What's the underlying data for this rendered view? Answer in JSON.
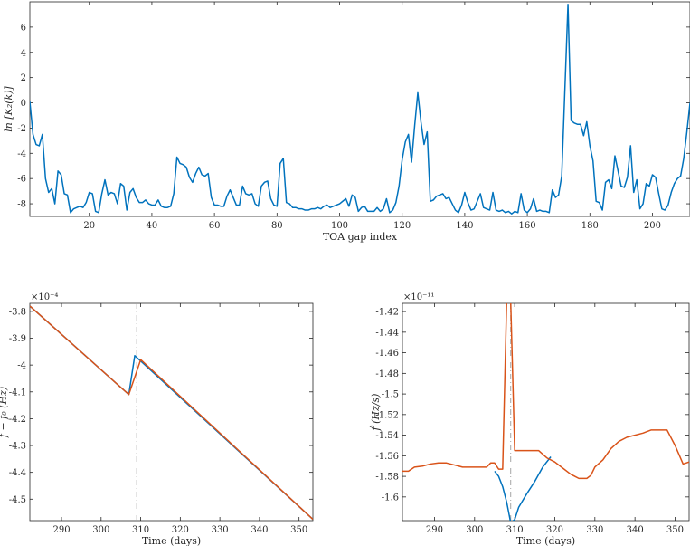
{
  "colors": {
    "blue": "#0072BD",
    "orange": "#D95319",
    "refline": "#A6A6A6",
    "axis": "#262626"
  },
  "chart_data": [
    {
      "id": "top",
      "type": "line",
      "xlabel": "TOA gap index",
      "ylabel": "ln [K₂(k)]",
      "xlim": [
        1,
        212
      ],
      "ylim": [
        -9,
        8
      ],
      "xticks": [
        20,
        40,
        60,
        80,
        100,
        120,
        140,
        160,
        180,
        200
      ],
      "yticks": [
        -8,
        -6,
        -4,
        -2,
        0,
        2,
        4,
        6
      ],
      "xtick_labels": [
        "20",
        "40",
        "60",
        "80",
        "100",
        "120",
        "140",
        "160",
        "180",
        "200"
      ],
      "ytick_labels": [
        "-8",
        "-6",
        "-4",
        "-2",
        "0",
        "2",
        "4",
        "6"
      ],
      "series": [
        {
          "color": "blue",
          "x": [
            1,
            2,
            3,
            4,
            5,
            6,
            7,
            8,
            9,
            10,
            11,
            12,
            13,
            14,
            15,
            16,
            17,
            18,
            19,
            20,
            21,
            22,
            23,
            24,
            25,
            26,
            27,
            28,
            29,
            30,
            31,
            32,
            33,
            34,
            35,
            36,
            37,
            38,
            39,
            40,
            41,
            42,
            43,
            44,
            45,
            46,
            47,
            48,
            49,
            50,
            51,
            52,
            53,
            54,
            55,
            56,
            57,
            58,
            59,
            60,
            61,
            62,
            63,
            64,
            65,
            66,
            67,
            68,
            69,
            70,
            71,
            72,
            73,
            74,
            75,
            76,
            77,
            78,
            79,
            80,
            81,
            82,
            83,
            84,
            85,
            86,
            87,
            88,
            89,
            90,
            91,
            92,
            93,
            94,
            95,
            96,
            97,
            98,
            99,
            100,
            101,
            102,
            103,
            104,
            105,
            106,
            107,
            108,
            109,
            110,
            111,
            112,
            113,
            114,
            115,
            116,
            117,
            118,
            119,
            120,
            121,
            122,
            123,
            124,
            125,
            126,
            127,
            128,
            129,
            130,
            131,
            132,
            133,
            134,
            135,
            136,
            137,
            138,
            139,
            140,
            141,
            142,
            143,
            144,
            145,
            146,
            147,
            148,
            149,
            150,
            151,
            152,
            153,
            154,
            155,
            156,
            157,
            158,
            159,
            160,
            161,
            162,
            163,
            164,
            165,
            166,
            167,
            168,
            169,
            170,
            171,
            172,
            173,
            174,
            175,
            176,
            177,
            178,
            179,
            180,
            181,
            182,
            183,
            184,
            185,
            186,
            187,
            188,
            189,
            190,
            191,
            192,
            193,
            194,
            195,
            196,
            197,
            198,
            199,
            200,
            201,
            202,
            203,
            204,
            205,
            206,
            207,
            208,
            209,
            210,
            211,
            212
          ],
          "y": [
            0.1,
            -2.5,
            -3.3,
            -3.4,
            -2.5,
            -6,
            -7.1,
            -6.8,
            -8,
            -5.4,
            -5.7,
            -7.2,
            -7.3,
            -8.7,
            -8.4,
            -8.3,
            -8.2,
            -8.3,
            -7.9,
            -7.1,
            -7.2,
            -8.6,
            -8.7,
            -7.2,
            -6.1,
            -7.3,
            -7.1,
            -7.2,
            -8,
            -6.4,
            -6.6,
            -8.5,
            -7.1,
            -6.8,
            -7.5,
            -7.9,
            -7.9,
            -7.7,
            -8,
            -8.1,
            -8.1,
            -7.7,
            -8.2,
            -8.3,
            -8.3,
            -8.2,
            -7.2,
            -4.3,
            -4.8,
            -4.9,
            -5.1,
            -5.9,
            -6.3,
            -5.6,
            -5.1,
            -5.7,
            -5.8,
            -5.6,
            -7.5,
            -8.1,
            -8.1,
            -8.2,
            -8.2,
            -7.4,
            -6.9,
            -7.5,
            -8.1,
            -8.1,
            -6.6,
            -7.2,
            -7.3,
            -7.2,
            -8,
            -8.2,
            -6.6,
            -6.3,
            -6.2,
            -7.6,
            -8.1,
            -8.2,
            -4.8,
            -4.4,
            -7.9,
            -8,
            -8.3,
            -8.3,
            -8.4,
            -8.4,
            -8.5,
            -8.5,
            -8.4,
            -8.4,
            -8.3,
            -8.4,
            -8.2,
            -8.1,
            -8.3,
            -8.2,
            -8.1,
            -8,
            -7.8,
            -7.6,
            -8.2,
            -7.3,
            -7.5,
            -8.6,
            -8.3,
            -8.2,
            -8.6,
            -8.6,
            -8.6,
            -8.3,
            -8.6,
            -8.4,
            -7.6,
            -8.7,
            -8.5,
            -7.9,
            -6.6,
            -4.5,
            -3.1,
            -2.5,
            -4.7,
            -1.8,
            0.8,
            -1.5,
            -3.3,
            -2.3,
            -7.8,
            -7.7,
            -7.4,
            -7.3,
            -7.2,
            -7.6,
            -7.5,
            -8,
            -8.5,
            -8.7,
            -8.1,
            -7.1,
            -7.9,
            -8.5,
            -8.4,
            -7.8,
            -7.2,
            -8.3,
            -8.4,
            -8.5,
            -7.1,
            -8.5,
            -8.6,
            -8.5,
            -8.7,
            -8.6,
            -8.8,
            -8.6,
            -8.7,
            -7.2,
            -8.5,
            -8.7,
            -8.4,
            -7.6,
            -8.6,
            -8.5,
            -8.6,
            -8.6,
            -8.7,
            -6.9,
            -7.5,
            -7.3,
            -5.8,
            1,
            7.8,
            -1.4,
            -1.6,
            -1.7,
            -1.7,
            -2.6,
            -1.5,
            -3.4,
            -4.6,
            -7.8,
            -7.9,
            -8.5,
            -6.3,
            -6.1,
            -6.8,
            -4.2,
            -5.4,
            -6.6,
            -6.7,
            -5.9,
            -3.4,
            -7.1,
            -6.1,
            -8.4,
            -8,
            -6.4,
            -6.6,
            -5.7,
            -5.9,
            -7.2,
            -8.4,
            -8.5,
            -8.1,
            -7.1,
            -6.4,
            -6,
            -5.8,
            -4.4,
            -2.3,
            0
          ]
        }
      ]
    },
    {
      "id": "bottom-left",
      "type": "line",
      "xlabel": "Time (days)",
      "ylabel": "f − f₀ (Hz)",
      "exponent_label": "×10⁻⁴",
      "xlim": [
        282,
        353.5
      ],
      "ylim": [
        -4.58,
        -3.77
      ],
      "xticks": [
        290,
        300,
        310,
        320,
        330,
        340,
        350
      ],
      "yticks": [
        -4.5,
        -4.4,
        -4.3,
        -4.2,
        -4.1,
        -4.0,
        -3.9,
        -3.8
      ],
      "xtick_labels": [
        "290",
        "300",
        "310",
        "320",
        "330",
        "340",
        "350"
      ],
      "ytick_labels": [
        "-4.5",
        "-4.4",
        "-4.3",
        "-4.2",
        "-4.1",
        "-4",
        "-3.9",
        "-3.8"
      ],
      "refline_x": 309,
      "series": [
        {
          "color": "blue",
          "x": [
            282,
            307,
            308.5,
            310,
            353.5
          ],
          "y": [
            -3.78,
            -4.11,
            -3.965,
            -3.985,
            -4.575
          ]
        },
        {
          "color": "orange",
          "x": [
            282,
            307,
            310,
            353.5
          ],
          "y": [
            -3.78,
            -4.11,
            -3.98,
            -4.575
          ]
        }
      ]
    },
    {
      "id": "bottom-right",
      "type": "line",
      "xlabel": "Time (days)",
      "ylabel": "ḟ (Hz/s)",
      "exponent_label": "×10⁻¹¹",
      "xlim": [
        282,
        353.5
      ],
      "ylim": [
        -1.623,
        -1.412
      ],
      "xticks": [
        290,
        300,
        310,
        320,
        330,
        340,
        350
      ],
      "yticks": [
        -1.6,
        -1.58,
        -1.56,
        -1.54,
        -1.52,
        -1.5,
        -1.48,
        -1.46,
        -1.44,
        -1.42
      ],
      "xtick_labels": [
        "290",
        "300",
        "310",
        "320",
        "330",
        "340",
        "350"
      ],
      "ytick_labels": [
        "-1.6",
        "-1.58",
        "-1.56",
        "-1.54",
        "-1.52",
        "-1.5",
        "-1.48",
        "-1.46",
        "-1.44",
        "-1.42"
      ],
      "refline_x": 309,
      "series": [
        {
          "color": "blue",
          "x": [
            305,
            306,
            307,
            308,
            309,
            310,
            311,
            313,
            315,
            317,
            319
          ],
          "y": [
            -1.575,
            -1.58,
            -1.59,
            -1.605,
            -1.625,
            -1.622,
            -1.61,
            -1.597,
            -1.585,
            -1.571,
            -1.561
          ]
        },
        {
          "color": "orange",
          "x": [
            282,
            283.5,
            285,
            287,
            289,
            291,
            293,
            295,
            297,
            299,
            301,
            303,
            304,
            305,
            306,
            307,
            308,
            309,
            310,
            312,
            314,
            316,
            318,
            320,
            322,
            324,
            326,
            328,
            329,
            330,
            332,
            334,
            336,
            338,
            340,
            342,
            344,
            346,
            348,
            350,
            352,
            353.5
          ],
          "y": [
            -1.575,
            -1.575,
            -1.571,
            -1.57,
            -1.568,
            -1.567,
            -1.567,
            -1.569,
            -1.571,
            -1.571,
            -1.571,
            -1.571,
            -1.567,
            -1.567,
            -1.573,
            -1.573,
            -1.41,
            -1.41,
            -1.555,
            -1.555,
            -1.555,
            -1.555,
            -1.562,
            -1.566,
            -1.572,
            -1.578,
            -1.582,
            -1.582,
            -1.579,
            -1.571,
            -1.564,
            -1.553,
            -1.546,
            -1.542,
            -1.54,
            -1.538,
            -1.535,
            -1.535,
            -1.535,
            -1.55,
            -1.568,
            -1.566
          ]
        }
      ]
    }
  ]
}
